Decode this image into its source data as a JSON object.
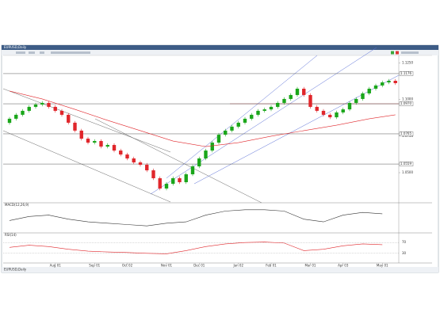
{
  "window": {
    "title": "EURUSD,Daily",
    "status": "EURUSD,Daily"
  },
  "chart": {
    "ylim": [
      1.03,
      1.13
    ],
    "yticks": [
      {
        "value": 1.125,
        "label": "1.1250"
      },
      {
        "value": 1.1,
        "label": "1.1000"
      },
      {
        "value": 1.075,
        "label": "1.0750"
      },
      {
        "value": 1.05,
        "label": "1.0500"
      }
    ],
    "levels": [
      {
        "value": 1.1176,
        "label": "1.1176"
      },
      {
        "value": 1.097,
        "label": "1.0970"
      },
      {
        "value": 1.0765,
        "label": "1.0765"
      },
      {
        "value": 1.0559,
        "label": "1.0559"
      }
    ],
    "up_color": "#1aa61a",
    "down_color": "#e0262b",
    "candles": [
      [
        1.084,
        1.088,
        1.0828,
        1.0868
      ],
      [
        1.0868,
        1.0907,
        1.0856,
        1.0895
      ],
      [
        1.0895,
        1.0934,
        1.0883,
        1.0922
      ],
      [
        1.0922,
        1.0961,
        1.091,
        1.0949
      ],
      [
        1.0949,
        1.0977,
        1.0937,
        1.0965
      ],
      [
        1.0965,
        1.0988,
        1.0953,
        1.0976
      ],
      [
        1.0976,
        1.0988,
        1.0937,
        1.0949
      ],
      [
        1.0949,
        1.0961,
        1.091,
        1.0922
      ],
      [
        1.0922,
        1.0934,
        1.0883,
        1.0895
      ],
      [
        1.0895,
        1.0907,
        1.0829,
        1.0841
      ],
      [
        1.0841,
        1.0853,
        1.0775,
        1.0787
      ],
      [
        1.0787,
        1.0799,
        1.072,
        1.0732
      ],
      [
        1.0732,
        1.0744,
        1.0693,
        1.0705
      ],
      [
        1.0705,
        1.0728,
        1.0693,
        1.0716
      ],
      [
        1.0716,
        1.0728,
        1.0666,
        1.0678
      ],
      [
        1.0678,
        1.0701,
        1.0666,
        1.0689
      ],
      [
        1.0689,
        1.0701,
        1.0639,
        1.0651
      ],
      [
        1.0651,
        1.0663,
        1.0612,
        1.0624
      ],
      [
        1.0624,
        1.0636,
        1.0585,
        1.0597
      ],
      [
        1.0597,
        1.0609,
        1.0558,
        1.057
      ],
      [
        1.057,
        1.0582,
        1.0542,
        1.0554
      ],
      [
        1.0554,
        1.0566,
        1.0504,
        1.0516
      ],
      [
        1.0516,
        1.0528,
        1.045,
        1.0462
      ],
      [
        1.0462,
        1.0474,
        1.038,
        1.0392
      ],
      [
        1.0392,
        1.0436,
        1.038,
        1.0424
      ],
      [
        1.0424,
        1.0474,
        1.0412,
        1.0462
      ],
      [
        1.0462,
        1.0474,
        1.0423,
        1.0435
      ],
      [
        1.0435,
        1.0501,
        1.0423,
        1.0489
      ],
      [
        1.0489,
        1.0555,
        1.0477,
        1.0543
      ],
      [
        1.0543,
        1.0609,
        1.0531,
        1.0597
      ],
      [
        1.0597,
        1.0663,
        1.0585,
        1.0651
      ],
      [
        1.0651,
        1.0717,
        1.0639,
        1.0705
      ],
      [
        1.0705,
        1.0771,
        1.0693,
        1.0759
      ],
      [
        1.0759,
        1.0799,
        1.0747,
        1.0787
      ],
      [
        1.0787,
        1.0826,
        1.0775,
        1.0814
      ],
      [
        1.0814,
        1.0853,
        1.0802,
        1.0841
      ],
      [
        1.0841,
        1.088,
        1.0829,
        1.0868
      ],
      [
        1.0868,
        1.0907,
        1.0856,
        1.0895
      ],
      [
        1.0895,
        1.0934,
        1.0883,
        1.0922
      ],
      [
        1.0922,
        1.0944,
        1.091,
        1.0932
      ],
      [
        1.0932,
        1.0961,
        1.092,
        1.0949
      ],
      [
        1.0949,
        1.0988,
        1.0937,
        1.0976
      ],
      [
        1.0976,
        1.1015,
        1.0964,
        1.1003
      ],
      [
        1.1003,
        1.1042,
        1.0991,
        1.103
      ],
      [
        1.103,
        1.1085,
        1.1018,
        1.1073
      ],
      [
        1.1073,
        1.1085,
        1.1018,
        1.103
      ],
      [
        1.103,
        1.1042,
        1.0937,
        1.0949
      ],
      [
        1.0949,
        1.0961,
        1.091,
        1.0922
      ],
      [
        1.0922,
        1.0934,
        1.0883,
        1.0895
      ],
      [
        1.0895,
        1.0907,
        1.0866,
        1.0878
      ],
      [
        1.0878,
        1.0923,
        1.0866,
        1.0911
      ],
      [
        1.0911,
        1.0944,
        1.0899,
        1.0932
      ],
      [
        1.0932,
        1.0988,
        1.092,
        1.0976
      ],
      [
        1.0976,
        1.1015,
        1.0964,
        1.1003
      ],
      [
        1.1003,
        1.1053,
        1.0991,
        1.1041
      ],
      [
        1.1041,
        1.1085,
        1.1029,
        1.1073
      ],
      [
        1.1073,
        1.1107,
        1.1061,
        1.1095
      ],
      [
        1.1095,
        1.1128,
        1.1083,
        1.1116
      ],
      [
        1.1116,
        1.1139,
        1.1104,
        1.1127
      ],
      [
        1.1127,
        1.1139,
        1.1099,
        1.1111
      ]
    ],
    "moving_average": {
      "color": "#e0262b",
      "x": [
        0,
        5,
        10,
        15,
        20,
        25,
        30,
        35,
        40,
        45,
        50,
        55,
        59
      ],
      "values": [
        1.1057,
        1.1003,
        1.0932,
        1.0857,
        1.0787,
        1.0716,
        1.0678,
        1.0705,
        1.0749,
        1.0787,
        1.0824,
        1.0868,
        1.0895
      ]
    },
    "date_ticks": [
      {
        "value": 7,
        "label": "Aug 01"
      },
      {
        "value": 13,
        "label": "Sep 01"
      },
      {
        "value": 18,
        "label": "Oct 02"
      },
      {
        "value": 24,
        "label": "Nov 01"
      },
      {
        "value": 29,
        "label": "Dec 01"
      },
      {
        "value": 35,
        "label": "Jan 02"
      },
      {
        "value": 40,
        "label": "Feb 01"
      },
      {
        "value": 46,
        "label": "Mar 01"
      },
      {
        "value": 51,
        "label": "Apr 03"
      },
      {
        "value": 57,
        "label": "May 01"
      }
    ]
  },
  "panels": [
    {
      "name": "MACD(12,26,9)",
      "color": "#333333",
      "ylim": [
        -0.01,
        0.01
      ],
      "x": [
        0,
        3,
        6,
        9,
        12,
        15,
        18,
        21,
        24,
        27,
        30,
        33,
        36,
        39,
        42,
        45,
        48,
        51,
        54,
        57
      ],
      "values": [
        -0.002,
        0.001,
        0.002,
        -0.001,
        -0.003,
        -0.004,
        -0.005,
        -0.006,
        -0.004,
        -0.003,
        0.002,
        0.005,
        0.006,
        0.006,
        0.005,
        -0.001,
        -0.003,
        0.002,
        0.004,
        0.003
      ]
    },
    {
      "name": "RSI(14)",
      "color": "#e0262b",
      "ylim": [
        0,
        100
      ],
      "yticks": [
        30,
        70
      ],
      "x": [
        0,
        3,
        6,
        9,
        12,
        15,
        18,
        21,
        24,
        27,
        30,
        33,
        36,
        39,
        42,
        45,
        48,
        51,
        54,
        57
      ],
      "values": [
        52,
        60,
        55,
        45,
        38,
        35,
        33,
        30,
        28,
        40,
        55,
        65,
        70,
        72,
        68,
        40,
        45,
        58,
        65,
        62
      ]
    }
  ]
}
